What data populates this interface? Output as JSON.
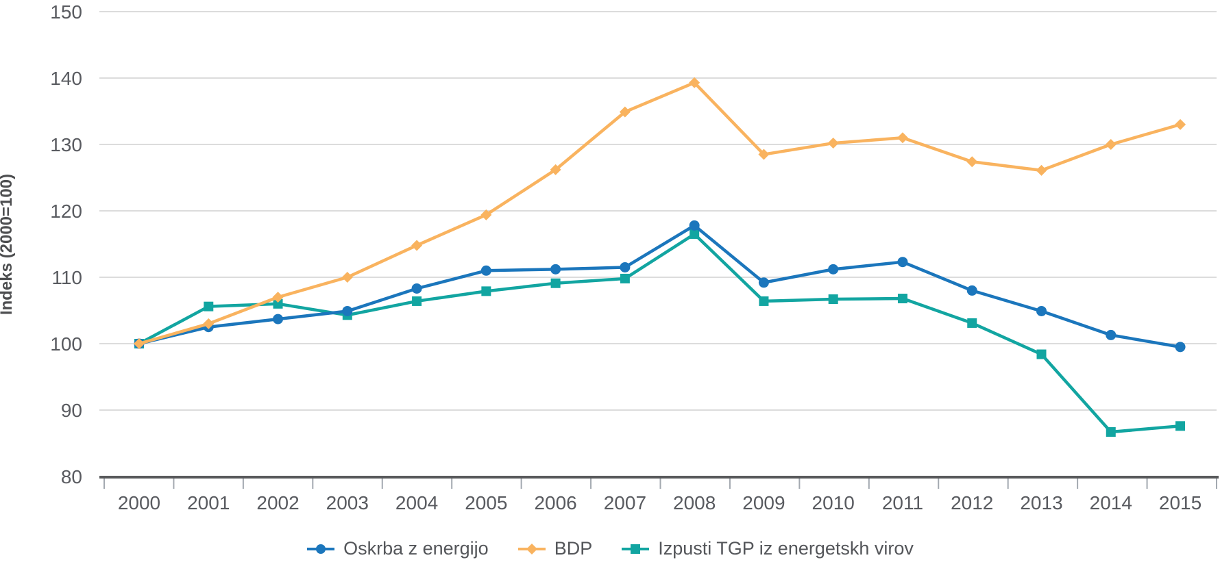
{
  "chart_data": {
    "type": "line",
    "title": "",
    "xlabel": "",
    "ylabel": "Indeks (2000=100)",
    "ylim": [
      80,
      150
    ],
    "y_ticks": [
      150,
      140,
      130,
      120,
      110,
      100,
      90,
      80
    ],
    "x": [
      "2000",
      "2001",
      "2002",
      "2003",
      "2004",
      "2005",
      "2006",
      "2007",
      "2008",
      "2009",
      "2010",
      "2011",
      "2012",
      "2013",
      "2014",
      "2015"
    ],
    "grid": true,
    "legend_position": "bottom",
    "grid_color": "#dcdcdc",
    "axis_color": "#58595b",
    "tick_color": "#a3a9b0",
    "label_color": "#595b60",
    "legend_text_color": "#54565a",
    "series": [
      {
        "name": "Oskrba z energijo",
        "marker": "circle",
        "color": "#1b76bc",
        "values": [
          100,
          102.5,
          103.7,
          104.9,
          108.3,
          111.0,
          111.2,
          111.5,
          117.8,
          109.2,
          111.2,
          112.3,
          108.0,
          104.9,
          101.3,
          99.5
        ]
      },
      {
        "name": "BDP",
        "marker": "diamond",
        "color": "#f9b35f",
        "values": [
          100,
          103.0,
          107.0,
          110.0,
          114.8,
          119.4,
          126.2,
          134.9,
          139.3,
          128.5,
          130.2,
          131.0,
          127.4,
          126.1,
          130.0,
          133.0
        ]
      },
      {
        "name": "Izpusti TGP iz energetskh virov",
        "marker": "square",
        "color": "#12a5a1",
        "values": [
          100,
          105.6,
          106.0,
          104.3,
          106.4,
          107.9,
          109.1,
          109.8,
          116.5,
          106.4,
          106.7,
          106.8,
          103.1,
          98.4,
          86.7,
          87.6
        ]
      }
    ]
  }
}
